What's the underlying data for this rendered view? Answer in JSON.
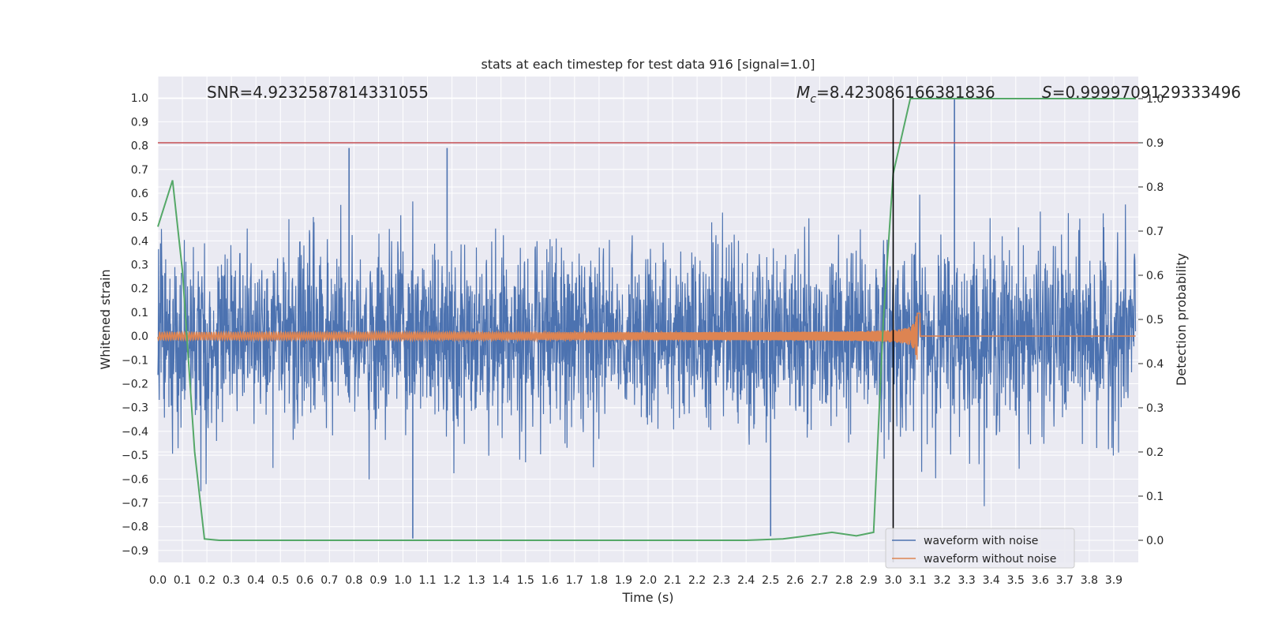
{
  "chart_data": {
    "type": "line",
    "title": "stats at each timestep for test data 916 [signal=1.0]",
    "xlabel": "Time (s)",
    "ylabel": "Whitened strain",
    "y2label": "Detection probability",
    "xlim": [
      0.0,
      4.0
    ],
    "ylim": [
      -0.95,
      1.09
    ],
    "y2lim": [
      -0.05,
      1.05
    ],
    "x_ticks": [
      "0.0",
      "0.1",
      "0.2",
      "0.3",
      "0.4",
      "0.5",
      "0.6",
      "0.7",
      "0.8",
      "0.9",
      "1.0",
      "1.1",
      "1.2",
      "1.3",
      "1.4",
      "1.5",
      "1.6",
      "1.7",
      "1.8",
      "1.9",
      "2.0",
      "2.1",
      "2.2",
      "2.3",
      "2.4",
      "2.5",
      "2.6",
      "2.7",
      "2.8",
      "2.9",
      "3.0",
      "3.1",
      "3.2",
      "3.3",
      "3.4",
      "3.5",
      "3.6",
      "3.7",
      "3.8",
      "3.9"
    ],
    "y_ticks": [
      "1.0",
      "0.9",
      "0.8",
      "0.7",
      "0.6",
      "0.5",
      "0.4",
      "0.3",
      "0.2",
      "0.1",
      "0.0",
      "-0.1",
      "-0.2",
      "-0.3",
      "-0.4",
      "-0.5",
      "-0.6",
      "-0.7",
      "-0.8",
      "-0.9"
    ],
    "y2_ticks": [
      "1.0",
      "0.9",
      "0.8",
      "0.7",
      "0.6",
      "0.5",
      "0.4",
      "0.3",
      "0.2",
      "0.1",
      "0.0"
    ],
    "grid": true,
    "legend": {
      "position": "lower-right",
      "entries": [
        "waveform with noise",
        "waveform without noise"
      ]
    },
    "annotations": {
      "snr": "SNR=4.9232587814331055",
      "mc_symbol": "M",
      "mc_subscript": "c",
      "mc_value": "=8.423086166381836",
      "s_symbol": "S",
      "s_value": "=0.9999709129333496"
    },
    "series": [
      {
        "name": "waveform with noise",
        "color": "#4c72b0",
        "axis": "left",
        "description": "dense noisy strain, roughly -0.85 to 1.0",
        "notable_spikes": [
          {
            "x": 0.78,
            "y": 0.79
          },
          {
            "x": 1.04,
            "y": -0.85
          },
          {
            "x": 1.18,
            "y": 0.79
          },
          {
            "x": 2.5,
            "y": -0.84
          },
          {
            "x": 3.25,
            "y": 1.0
          }
        ]
      },
      {
        "name": "waveform without noise",
        "color": "#dd8452",
        "axis": "left",
        "description": "chirp signal ending at merger near 3.1 s",
        "base_amplitude": 0.015,
        "merger_time": 3.1,
        "peak_amplitude": 0.14
      },
      {
        "name": "detection probability",
        "color": "#55a868",
        "axis": "right",
        "x": [
          0.0,
          0.06,
          0.1,
          0.15,
          0.19,
          0.25,
          0.5,
          1.0,
          1.5,
          2.0,
          2.4,
          2.55,
          2.62,
          2.75,
          2.85,
          2.92,
          2.96,
          3.0,
          3.07,
          3.2,
          3.5,
          3.99
        ],
        "values": [
          0.71,
          0.815,
          0.61,
          0.2,
          0.003,
          0.0,
          0.0,
          0.0,
          0.0,
          0.0,
          0.0,
          0.003,
          0.008,
          0.018,
          0.01,
          0.018,
          0.5,
          0.83,
          1.0,
          1.0,
          1.0,
          1.0
        ]
      }
    ],
    "threshold_line": {
      "axis": "right",
      "value": 0.9,
      "color": "#c44e52"
    },
    "vertical_line": {
      "x": 3.0,
      "color": "#000000"
    }
  }
}
